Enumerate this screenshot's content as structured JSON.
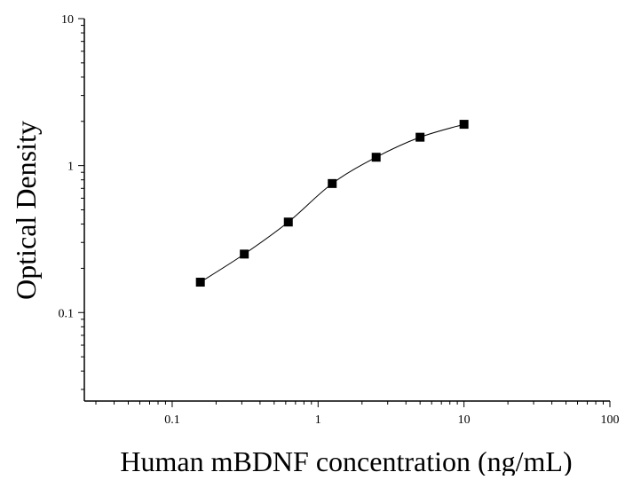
{
  "chart_data": {
    "type": "scatter",
    "title": "",
    "xlabel": "Human mBDNF concentration (ng/mL)",
    "ylabel": "Optical Density",
    "x_scale": "log",
    "y_scale": "log",
    "xlim": [
      0.025,
      100
    ],
    "ylim": [
      0.025,
      10
    ],
    "x_ticks": [
      0.1,
      1,
      10,
      100
    ],
    "x_tick_labels": [
      "0.1",
      "1",
      "10",
      "100"
    ],
    "y_ticks": [
      0.1,
      1,
      10
    ],
    "y_tick_labels": [
      "0.1",
      "1",
      "10"
    ],
    "grid": false,
    "legend": "none",
    "fit_curve": true,
    "series": [
      {
        "x": [
          0.156,
          0.312,
          0.625,
          1.25,
          2.5,
          5,
          10
        ],
        "y": [
          0.161,
          0.25,
          0.413,
          0.755,
          1.14,
          1.56,
          1.91
        ]
      }
    ],
    "colors": {
      "marker": "#000000",
      "line": "#000000",
      "axis": "#000000"
    }
  }
}
